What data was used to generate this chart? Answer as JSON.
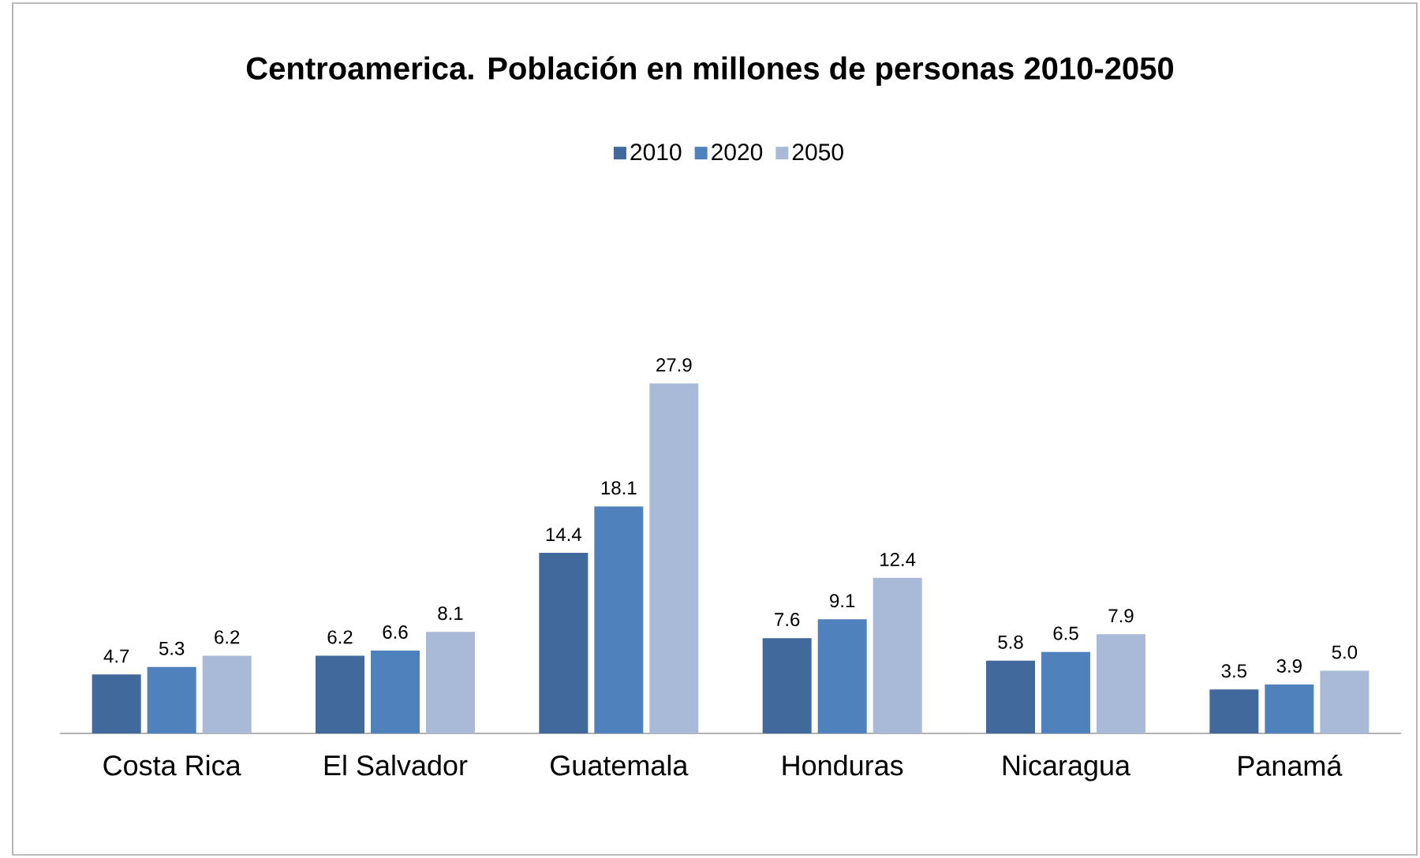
{
  "chart_data": {
    "type": "bar",
    "title": "Centroamerica. Población en millones de personas 2010-2050",
    "categories": [
      "Costa Rica",
      "El Salvador",
      "Guatemala",
      "Honduras",
      "Nicaragua",
      "Panamá"
    ],
    "series": [
      {
        "name": "2010",
        "color": "#41699c",
        "values": [
          4.7,
          6.2,
          14.4,
          7.6,
          5.8,
          3.5
        ],
        "value_labels": [
          "4.7",
          "6.2",
          "14.4",
          "7.6",
          "5.8",
          "3.5"
        ]
      },
      {
        "name": "2020",
        "color": "#4f81bd",
        "values": [
          5.3,
          6.6,
          18.1,
          9.1,
          6.5,
          3.9
        ],
        "value_labels": [
          "5.3",
          "6.6",
          "18.1",
          "9.1",
          "6.5",
          "3.9"
        ]
      },
      {
        "name": "2050",
        "color": "#a9b9d8",
        "values": [
          6.2,
          8.1,
          27.9,
          12.4,
          7.9,
          5.0
        ],
        "value_labels": [
          "6.2",
          "8.1",
          "27.9",
          "12.4",
          "7.9",
          "5.0"
        ]
      }
    ],
    "legend": "top"
  }
}
